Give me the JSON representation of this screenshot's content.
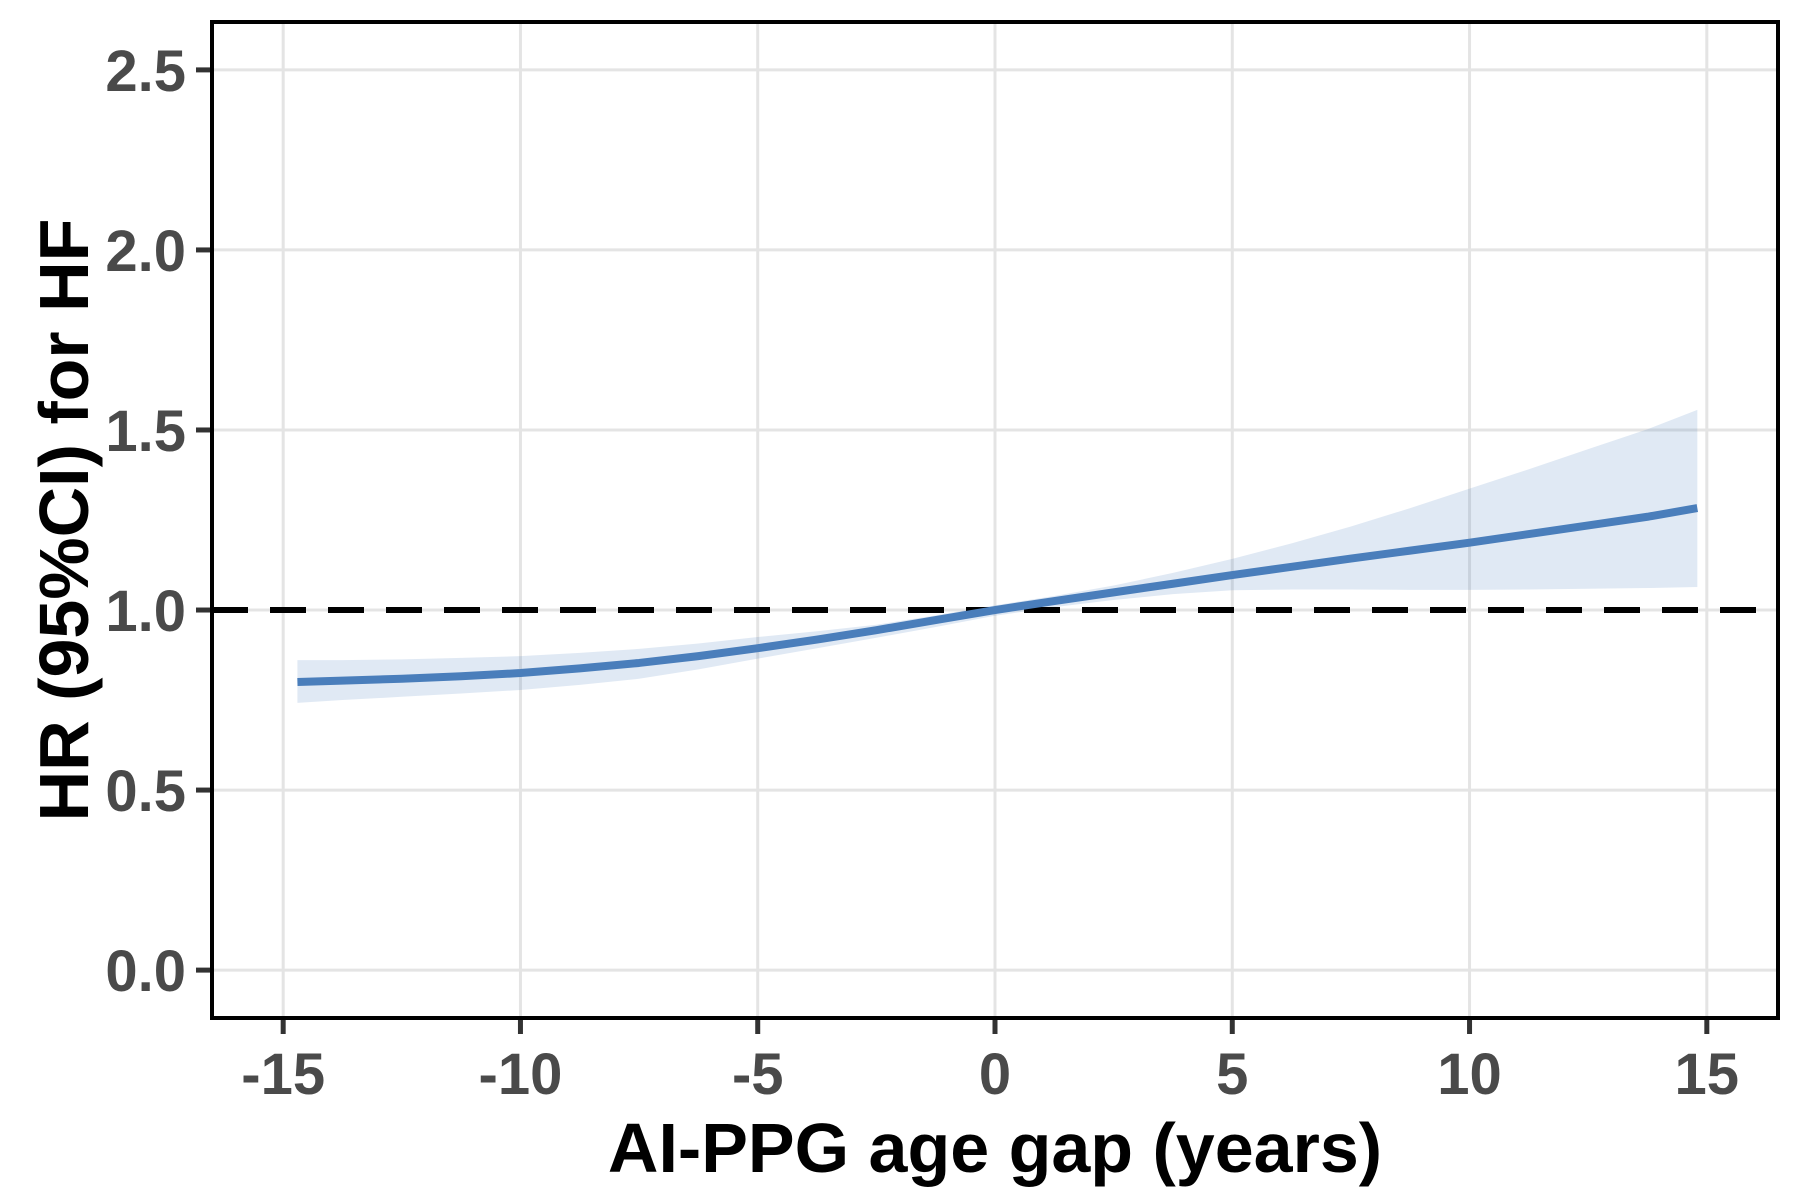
{
  "figure": {
    "background": "#ffffff",
    "description": "Restricted cubic spline plot of hazard ratio for heart failure versus AI-PPG age gap, with 95% confidence band and dashed reference line at HR = 1.0"
  },
  "chart_data": {
    "type": "line",
    "title": "",
    "xlabel": "AI-PPG age gap (years)",
    "ylabel": "HR (95%CI) for HF",
    "xlim": [
      -16.5,
      16.5
    ],
    "ylim": [
      -0.133,
      2.633
    ],
    "grid": "major-only",
    "legend_position": "none",
    "x_ticks": [
      {
        "label": "-15",
        "value": -15
      },
      {
        "label": "-10",
        "value": -10
      },
      {
        "label": "-5",
        "value": -5
      },
      {
        "label": "0",
        "value": 0
      },
      {
        "label": "5",
        "value": 5
      },
      {
        "label": "10",
        "value": 10
      },
      {
        "label": "15",
        "value": 15
      }
    ],
    "y_ticks": [
      {
        "label": "0.0",
        "value": 0.0
      },
      {
        "label": "0.5",
        "value": 0.5
      },
      {
        "label": "1.0",
        "value": 1.0
      },
      {
        "label": "1.5",
        "value": 1.5
      },
      {
        "label": "2.0",
        "value": 2.0
      },
      {
        "label": "2.5",
        "value": 2.5
      }
    ],
    "reference_line": {
      "y": 1.0,
      "style": "dashed",
      "color": "#000000"
    },
    "series": [
      {
        "name": "HR (95%CI)",
        "color": "#4a7ebb",
        "ci_fill": "rgba(74,126,187,0.17)",
        "x": [
          -14.7,
          -13.75,
          -12.5,
          -11.25,
          -10,
          -8.75,
          -7.5,
          -6.25,
          -5,
          -3.75,
          -2.5,
          -1.25,
          0,
          1.25,
          2.5,
          3.75,
          5,
          6.25,
          7.5,
          8.75,
          10,
          11.25,
          12.5,
          13.75,
          14.8
        ],
        "y": [
          0.8,
          0.804,
          0.809,
          0.816,
          0.825,
          0.838,
          0.853,
          0.872,
          0.894,
          0.918,
          0.944,
          0.972,
          1.0,
          1.025,
          1.049,
          1.073,
          1.097,
          1.12,
          1.143,
          1.165,
          1.187,
          1.211,
          1.235,
          1.259,
          1.283
        ],
        "ci_lower": [
          0.742,
          0.75,
          0.759,
          0.768,
          0.778,
          0.792,
          0.809,
          0.835,
          0.865,
          0.894,
          0.923,
          0.953,
          0.984,
          1.008,
          1.028,
          1.044,
          1.055,
          1.057,
          1.057,
          1.056,
          1.056,
          1.057,
          1.059,
          1.061,
          1.064
        ],
        "ci_upper": [
          0.861,
          0.861,
          0.863,
          0.867,
          0.872,
          0.881,
          0.892,
          0.907,
          0.925,
          0.941,
          0.959,
          0.985,
          1.013,
          1.039,
          1.068,
          1.103,
          1.142,
          1.185,
          1.232,
          1.283,
          1.337,
          1.391,
          1.447,
          1.502,
          1.556
        ]
      }
    ],
    "colors": {
      "panel_background": "#ffffff",
      "panel_border": "#000000",
      "gridline": "#e4e4e4",
      "tick_mark": "#333333",
      "tick_text": "#4a4a4a",
      "axis_title_text": "#000000"
    }
  }
}
